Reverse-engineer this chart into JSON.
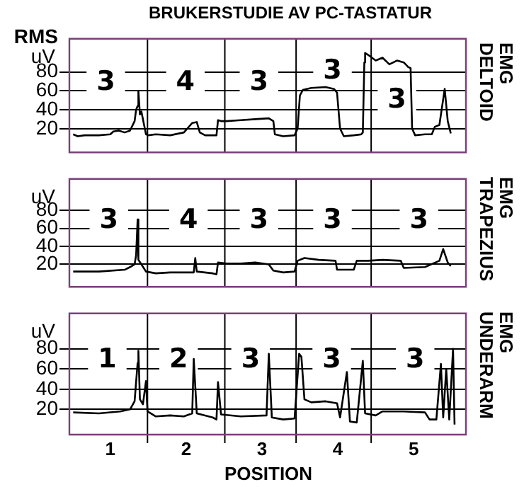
{
  "chart_data": [
    {
      "type": "line",
      "title": "BRUKERSTUDIE AV PC-TASTATUR",
      "ylabel": "uV",
      "y2label": "EMG DELTOID",
      "annotations": [
        "RMS",
        {
          "text": "3",
          "x": 0.94,
          "y": 70
        },
        {
          "text": "4",
          "x": 1.99,
          "y": 70
        },
        {
          "text": "3",
          "x": 2.96,
          "y": 70
        },
        {
          "text": "3",
          "x": 3.93,
          "y": 82
        },
        {
          "text": "3",
          "x": 4.78,
          "y": 51
        }
      ],
      "x": [
        0.51,
        0.57,
        0.66,
        0.85,
        1.0,
        1.04,
        1.11,
        1.19,
        1.26,
        1.32,
        1.34,
        1.36,
        1.37,
        1.39,
        1.41,
        1.43,
        1.47,
        1.5,
        1.6,
        1.79,
        1.97,
        2.08,
        2.14,
        2.18,
        2.25,
        2.4,
        2.42,
        2.46,
        2.53,
        2.72,
        2.91,
        3.09,
        3.15,
        3.17,
        3.28,
        3.43,
        3.47,
        3.5,
        3.54,
        3.65,
        3.84,
        3.95,
        3.99,
        4.03,
        4.08,
        4.21,
        4.31,
        4.33,
        4.35,
        4.36,
        4.4,
        4.5,
        4.59,
        4.68,
        4.78,
        4.87,
        4.93,
        4.96,
        4.98,
        5.02,
        5.15,
        5.24,
        5.28,
        5.34,
        5.41,
        5.45,
        5.49
      ],
      "values": [
        14,
        12,
        13,
        13,
        14,
        17,
        18,
        16,
        18,
        28,
        40,
        44,
        60,
        35,
        38,
        30,
        14,
        13,
        14,
        13,
        16,
        26,
        27,
        16,
        13,
        13,
        29,
        28,
        28,
        29,
        30,
        31,
        28,
        14,
        12,
        13,
        20,
        55,
        61,
        63,
        64,
        62,
        58,
        20,
        12,
        13,
        14,
        16,
        90,
        100,
        98,
        92,
        95,
        88,
        92,
        90,
        85,
        84,
        20,
        13,
        14,
        14,
        22,
        24,
        62,
        28,
        15
      ],
      "color": "#000000",
      "xlim": [
        0.46,
        5.69
      ],
      "ylim": [
        -5,
        115
      ],
      "yticks": [
        20,
        40,
        60,
        80
      ],
      "grid": "y",
      "tick_labels": "y",
      "marker": "none",
      "ref_lines": [
        {
          "axis": "x",
          "value": 1.49
        },
        {
          "axis": "x",
          "value": 2.51
        },
        {
          "axis": "x",
          "value": 3.45
        },
        {
          "axis": "x",
          "value": 4.44
        }
      ]
    },
    {
      "type": "line",
      "ylabel": "uV",
      "y2label": "EMG TRAPEZIUS",
      "annotations": [
        {
          "text": "3",
          "x": 0.98,
          "y": 70
        },
        {
          "text": "4",
          "x": 2.03,
          "y": 70
        },
        {
          "text": "3",
          "x": 2.96,
          "y": 70
        },
        {
          "text": "3",
          "x": 3.93,
          "y": 70
        },
        {
          "text": "3",
          "x": 5.07,
          "y": 70
        }
      ],
      "x": [
        0.51,
        0.85,
        1.19,
        1.26,
        1.32,
        1.34,
        1.36,
        1.37,
        1.41,
        1.47,
        1.6,
        1.79,
        1.97,
        2.1,
        2.12,
        2.14,
        2.35,
        2.4,
        2.42,
        2.53,
        2.72,
        2.91,
        3.09,
        3.15,
        3.28,
        3.43,
        3.47,
        3.56,
        3.75,
        3.97,
        3.99,
        4.21,
        4.25,
        4.4,
        4.59,
        4.83,
        4.87,
        5.15,
        5.34,
        5.39,
        5.45,
        5.49
      ],
      "values": [
        12,
        12,
        14,
        17,
        20,
        30,
        70,
        25,
        20,
        12,
        10,
        11,
        11,
        11,
        27,
        12,
        10,
        9,
        22,
        21,
        21,
        22,
        20,
        13,
        11,
        12,
        24,
        27,
        25,
        24,
        14,
        14,
        24,
        24,
        25,
        24,
        16,
        17,
        24,
        37,
        22,
        18
      ],
      "color": "#000000",
      "xlim": [
        0.46,
        5.69
      ],
      "ylim": [
        -5,
        115
      ],
      "yticks": [
        20,
        40,
        60,
        80
      ],
      "grid": "y",
      "tick_labels": "y",
      "marker": "none",
      "ref_lines": [
        {
          "axis": "x",
          "value": 1.49
        },
        {
          "axis": "x",
          "value": 2.51
        },
        {
          "axis": "x",
          "value": 3.45
        },
        {
          "axis": "x",
          "value": 4.44
        }
      ]
    },
    {
      "type": "line",
      "ylabel": "uV",
      "y2label": "EMG UNDERARM",
      "xlabel": "POSITION",
      "annotations": [
        {
          "text": "1",
          "x": 0.96,
          "y": 70
        },
        {
          "text": "2",
          "x": 1.9,
          "y": 70
        },
        {
          "text": "3",
          "x": 2.85,
          "y": 70
        },
        {
          "text": "3",
          "x": 3.92,
          "y": 70
        },
        {
          "text": "3",
          "x": 5.02,
          "y": 70
        }
      ],
      "x": [
        0.51,
        0.85,
        1.13,
        1.26,
        1.32,
        1.36,
        1.37,
        1.39,
        1.43,
        1.47,
        1.49,
        1.6,
        1.79,
        1.97,
        2.08,
        2.1,
        2.14,
        2.35,
        2.4,
        2.42,
        2.46,
        2.72,
        3.06,
        3.09,
        3.13,
        3.28,
        3.43,
        3.49,
        3.52,
        3.56,
        3.65,
        3.84,
        3.99,
        4.03,
        4.12,
        4.16,
        4.25,
        4.33,
        4.36,
        4.5,
        4.59,
        4.87,
        5.15,
        5.21,
        5.3,
        5.36,
        5.39,
        5.43,
        5.47,
        5.52,
        5.54
      ],
      "values": [
        17,
        16,
        18,
        20,
        28,
        66,
        78,
        30,
        25,
        48,
        18,
        13,
        14,
        13,
        16,
        70,
        16,
        12,
        10,
        47,
        15,
        13,
        14,
        75,
        12,
        10,
        11,
        75,
        72,
        30,
        27,
        28,
        26,
        12,
        57,
        8,
        7,
        68,
        16,
        14,
        18,
        18,
        17,
        10,
        10,
        65,
        12,
        60,
        10,
        80,
        5
      ],
      "color": "#000000",
      "xlim": [
        0.46,
        5.69
      ],
      "xticks": [
        1,
        2,
        3,
        4,
        5
      ],
      "ylim": [
        -5,
        115
      ],
      "yticks": [
        20,
        40,
        60,
        80
      ],
      "grid": "y",
      "marker": "none",
      "ref_lines": [
        {
          "axis": "x",
          "value": 1.49
        },
        {
          "axis": "x",
          "value": 2.51
        },
        {
          "axis": "x",
          "value": 3.45
        },
        {
          "axis": "x",
          "value": 4.44
        }
      ]
    }
  ]
}
